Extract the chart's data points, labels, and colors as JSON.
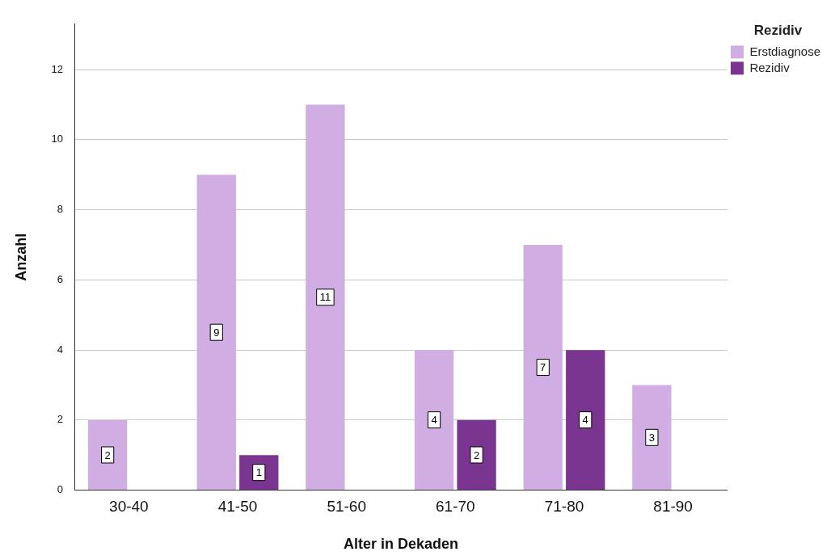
{
  "chart_data": {
    "type": "bar",
    "xlabel": "Alter in Dekaden",
    "ylabel": "Anzahl",
    "legend_title": "Rezidiv",
    "categories": [
      "30-40",
      "41-50",
      "51-60",
      "61-70",
      "71-80",
      "81-90"
    ],
    "series": [
      {
        "name": "Erstdiagnose",
        "color": "#d0aee4",
        "values": [
          2,
          9,
          11,
          4,
          7,
          3
        ]
      },
      {
        "name": "Rezidiv",
        "color": "#7a3590",
        "values": [
          null,
          1,
          null,
          2,
          4,
          null
        ]
      }
    ],
    "ylim": [
      0,
      13.3
    ],
    "yticks": [
      0,
      2,
      4,
      6,
      8,
      10,
      12
    ],
    "grid": "y",
    "legend": "top right",
    "data_labels": true
  }
}
